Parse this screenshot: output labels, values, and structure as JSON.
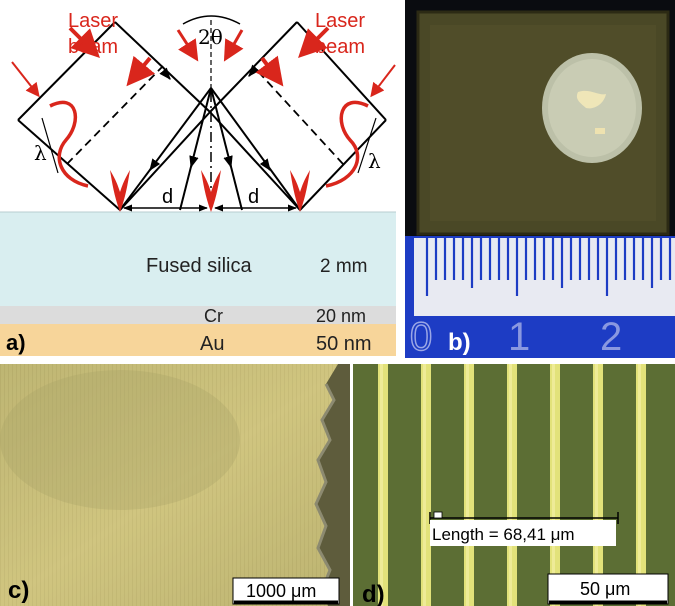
{
  "panel_a": {
    "label": "a)",
    "laser_left": [
      "Laser",
      "beam"
    ],
    "laser_right": [
      "Laser",
      "beam"
    ],
    "angle": "2θ",
    "lambda_left": "λ",
    "lambda_right": "λ",
    "d_left": "d",
    "d_right": "d",
    "layers": [
      {
        "name": "Fused silica",
        "thickness": "2 mm",
        "color": "#d9eef0"
      },
      {
        "name": "Cr",
        "thickness": "20 nm",
        "color": "#dcdcdc"
      },
      {
        "name": "Au",
        "thickness": "50 nm",
        "color": "#f7d59a"
      }
    ],
    "beam_color": "#d9261c"
  },
  "panel_b": {
    "label": "b)",
    "ruler_numbers": [
      "0",
      "1",
      "2"
    ]
  },
  "panel_c": {
    "label": "c)",
    "scale": "1000 μm"
  },
  "panel_d": {
    "label": "d)",
    "measure": "Length = 68,41 μm",
    "scale": "50 μm"
  }
}
